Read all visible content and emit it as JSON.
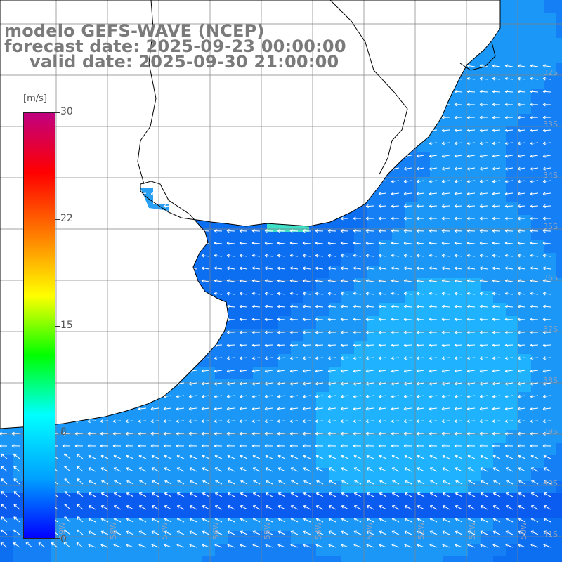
{
  "title": {
    "line1": "modelo GEFS-WAVE (NCEP)",
    "line2": "forecast date: 2025-09-23 00:00:00",
    "line3": "valid date: 2025-09-30 21:00:00"
  },
  "colorbar": {
    "unit": "[m/s]",
    "min": 0,
    "max": 30,
    "ticks": [
      "30",
      "22",
      "15",
      "8",
      "0"
    ],
    "tick_values": [
      30,
      22,
      15,
      8,
      0
    ],
    "colors": [
      "#0000ff",
      "#00a0ff",
      "#00ffff",
      "#00ff00",
      "#ffff00",
      "#ff8000",
      "#ff0000",
      "#c00080"
    ]
  },
  "map": {
    "field": "wind speed",
    "unit": "m/s",
    "land_color": "#ffffff",
    "coast_color": "#000000",
    "grid_color": "#808080",
    "arrow_color": "#ffffff",
    "lat_labels": [
      "32S",
      "33S",
      "34S",
      "35S",
      "36S",
      "37S",
      "38S",
      "39S",
      "40S",
      "41S"
    ],
    "lon_labels": [
      "59W",
      "58W",
      "57W",
      "56W",
      "55W",
      "54W",
      "53W",
      "52W",
      "51W",
      "50W",
      "49W"
    ],
    "speed_range_mps": [
      3,
      7
    ],
    "prevailing_wind_direction": "from east"
  }
}
